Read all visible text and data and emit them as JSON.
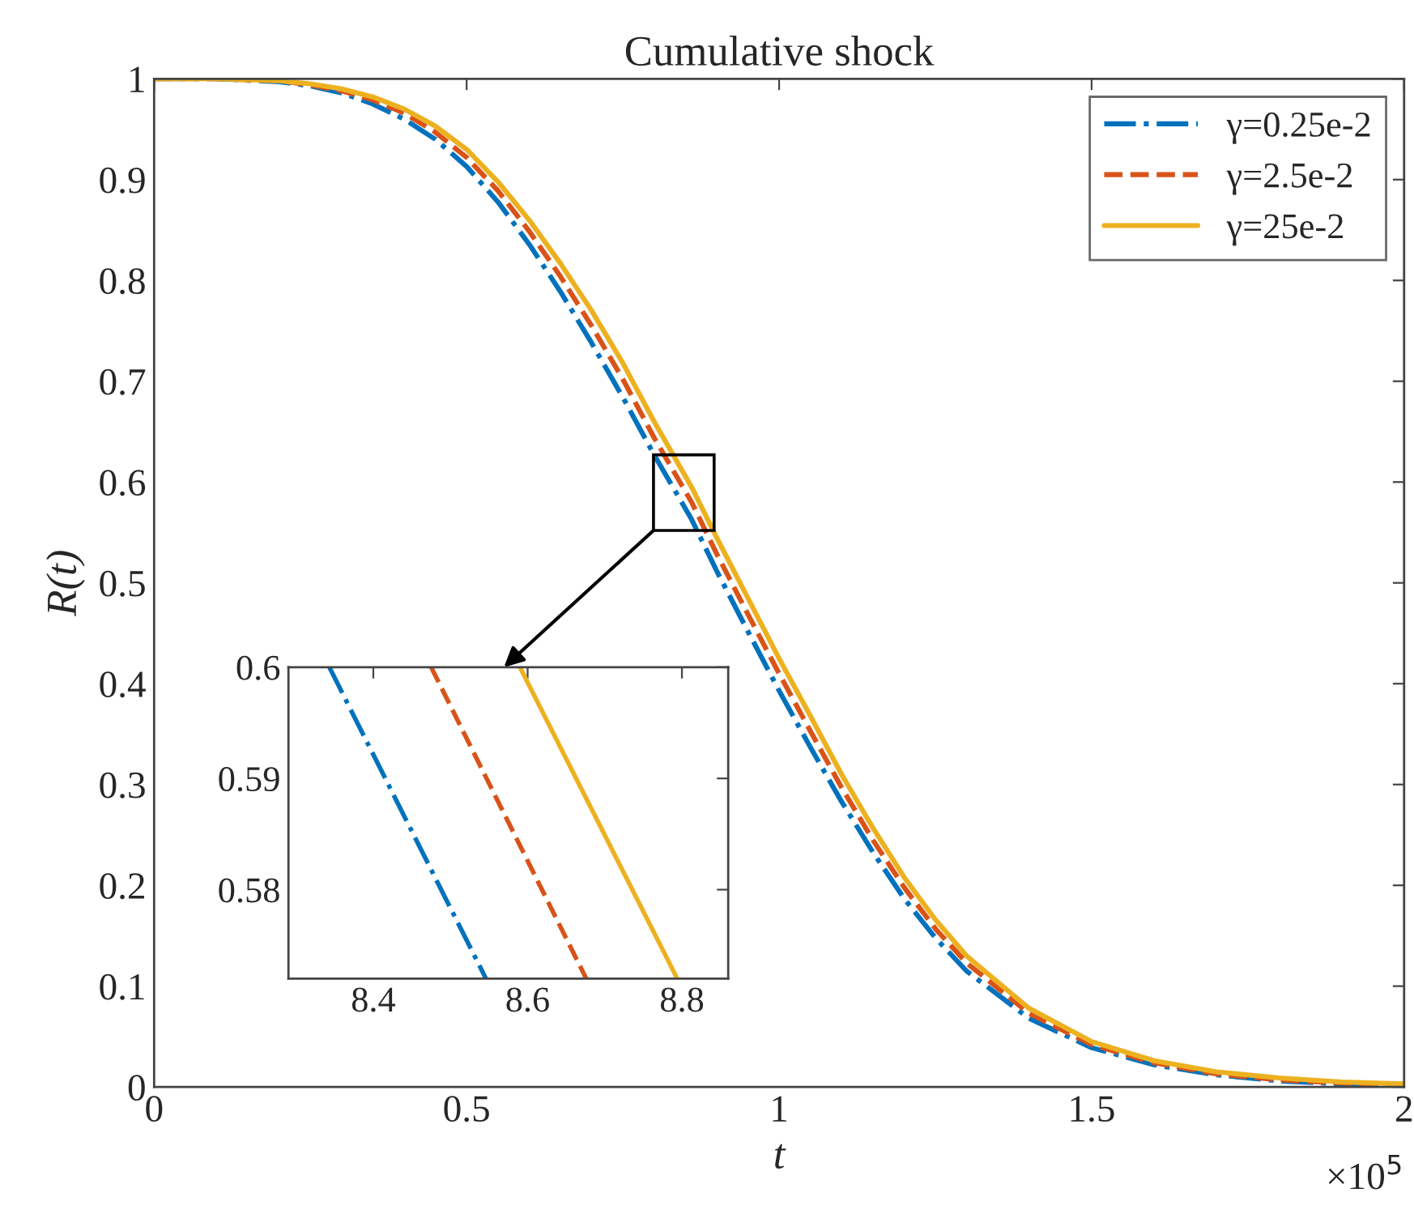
{
  "chart_data": [
    {
      "type": "line",
      "title": "Cumulative shock",
      "xlabel": "t",
      "ylabel": "R(t)",
      "annotations": [
        "×10$^{5}$"
      ],
      "x": [
        0,
        0.1,
        0.2,
        0.25,
        0.3,
        0.35,
        0.4,
        0.45,
        0.5,
        0.55,
        0.6,
        0.65,
        0.7,
        0.75,
        0.8,
        0.86,
        0.9,
        0.95,
        1.0,
        1.05,
        1.1,
        1.15,
        1.2,
        1.25,
        1.3,
        1.4,
        1.5,
        1.6,
        1.7,
        1.8,
        1.9,
        2.0
      ],
      "series": [
        {
          "name": "γ=0.25e-2",
          "color": "#0072bd",
          "line_style": "dashdot",
          "values": [
            1,
            1,
            0.997,
            0.993,
            0.986,
            0.975,
            0.96,
            0.94,
            0.913,
            0.878,
            0.836,
            0.789,
            0.738,
            0.684,
            0.627,
            0.563,
            0.512,
            0.452,
            0.393,
            0.337,
            0.283,
            0.233,
            0.187,
            0.148,
            0.115,
            0.068,
            0.039,
            0.022,
            0.012,
            0.006,
            0.003,
            0.001
          ]
        },
        {
          "name": "γ=2.5e-2",
          "color": "#d95319",
          "line_style": "dashed",
          "values": [
            1,
            1,
            0.998,
            0.994,
            0.988,
            0.979,
            0.966,
            0.947,
            0.922,
            0.889,
            0.849,
            0.804,
            0.755,
            0.702,
            0.644,
            0.58,
            0.529,
            0.469,
            0.41,
            0.353,
            0.297,
            0.245,
            0.198,
            0.157,
            0.123,
            0.073,
            0.042,
            0.024,
            0.013,
            0.007,
            0.004,
            0.002
          ]
        },
        {
          "name": "γ=25e-2",
          "color": "#edb120",
          "line_style": "solid",
          "values": [
            1,
            1,
            0.998,
            0.995,
            0.99,
            0.982,
            0.97,
            0.953,
            0.93,
            0.898,
            0.86,
            0.817,
            0.77,
            0.718,
            0.66,
            0.595,
            0.545,
            0.485,
            0.425,
            0.368,
            0.31,
            0.257,
            0.208,
            0.166,
            0.13,
            0.078,
            0.045,
            0.026,
            0.015,
            0.009,
            0.005,
            0.003
          ]
        }
      ],
      "xlim": [
        0,
        2
      ],
      "xticks": [
        0,
        0.5,
        1,
        1.5,
        2
      ],
      "ylim": [
        0,
        1
      ],
      "yticks": [
        0,
        0.1,
        0.2,
        0.3,
        0.4,
        0.5,
        0.6,
        0.7,
        0.8,
        0.9,
        1
      ],
      "legend": "top right",
      "grid": false
    },
    {
      "type": "line",
      "series": [
        {
          "color": "#0072bd",
          "line_style": "dashdot",
          "x": [
            8.343,
            8.546
          ],
          "values": [
            0.6,
            0.572
          ]
        },
        {
          "color": "#d95319",
          "line_style": "dashed",
          "x": [
            8.475,
            8.676
          ],
          "values": [
            0.6,
            0.572
          ]
        },
        {
          "color": "#edb120",
          "line_style": "solid",
          "x": [
            8.59,
            8.794
          ],
          "values": [
            0.6,
            0.572
          ]
        }
      ],
      "xlim": [
        8.29,
        8.86
      ],
      "xticks": [
        8.4,
        8.6,
        8.8
      ],
      "ylim": [
        0.572,
        0.6
      ],
      "yticks": [
        0.58,
        0.59,
        0.6
      ],
      "grid": false
    }
  ]
}
